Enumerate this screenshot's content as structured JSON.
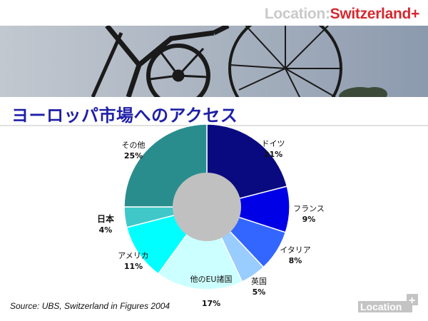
{
  "header": {
    "prefix": "Location:",
    "suffix": "Switzerland+"
  },
  "slide": {
    "title": "ヨーロッパ市場へのアクセス",
    "source": "Source: UBS, Switzerland in Figures 2004"
  },
  "logo": {
    "text": "Location",
    "plus": "+"
  },
  "chart_data": {
    "type": "pie",
    "title": "ヨーロッパ市場へのアクセス",
    "categories": [
      "ドイツ",
      "フランス",
      "イタリア",
      "英国",
      "他のEU諸国",
      "アメリカ",
      "日本",
      "その他"
    ],
    "values": [
      21,
      9,
      8,
      5,
      17,
      11,
      4,
      25
    ],
    "value_labels": [
      "21%",
      "9%",
      "8%",
      "5%",
      "17%",
      "11%",
      "4%",
      "25%"
    ],
    "colors": [
      "#0a0a80",
      "#0000e6",
      "#3366ff",
      "#99ccff",
      "#ccffff",
      "#00ffff",
      "#40c8c8",
      "#2a8d8d"
    ],
    "inner_circle_color": "#c0c0c0",
    "start_angle_deg": 0,
    "direction": "clockwise",
    "legend": "none"
  }
}
